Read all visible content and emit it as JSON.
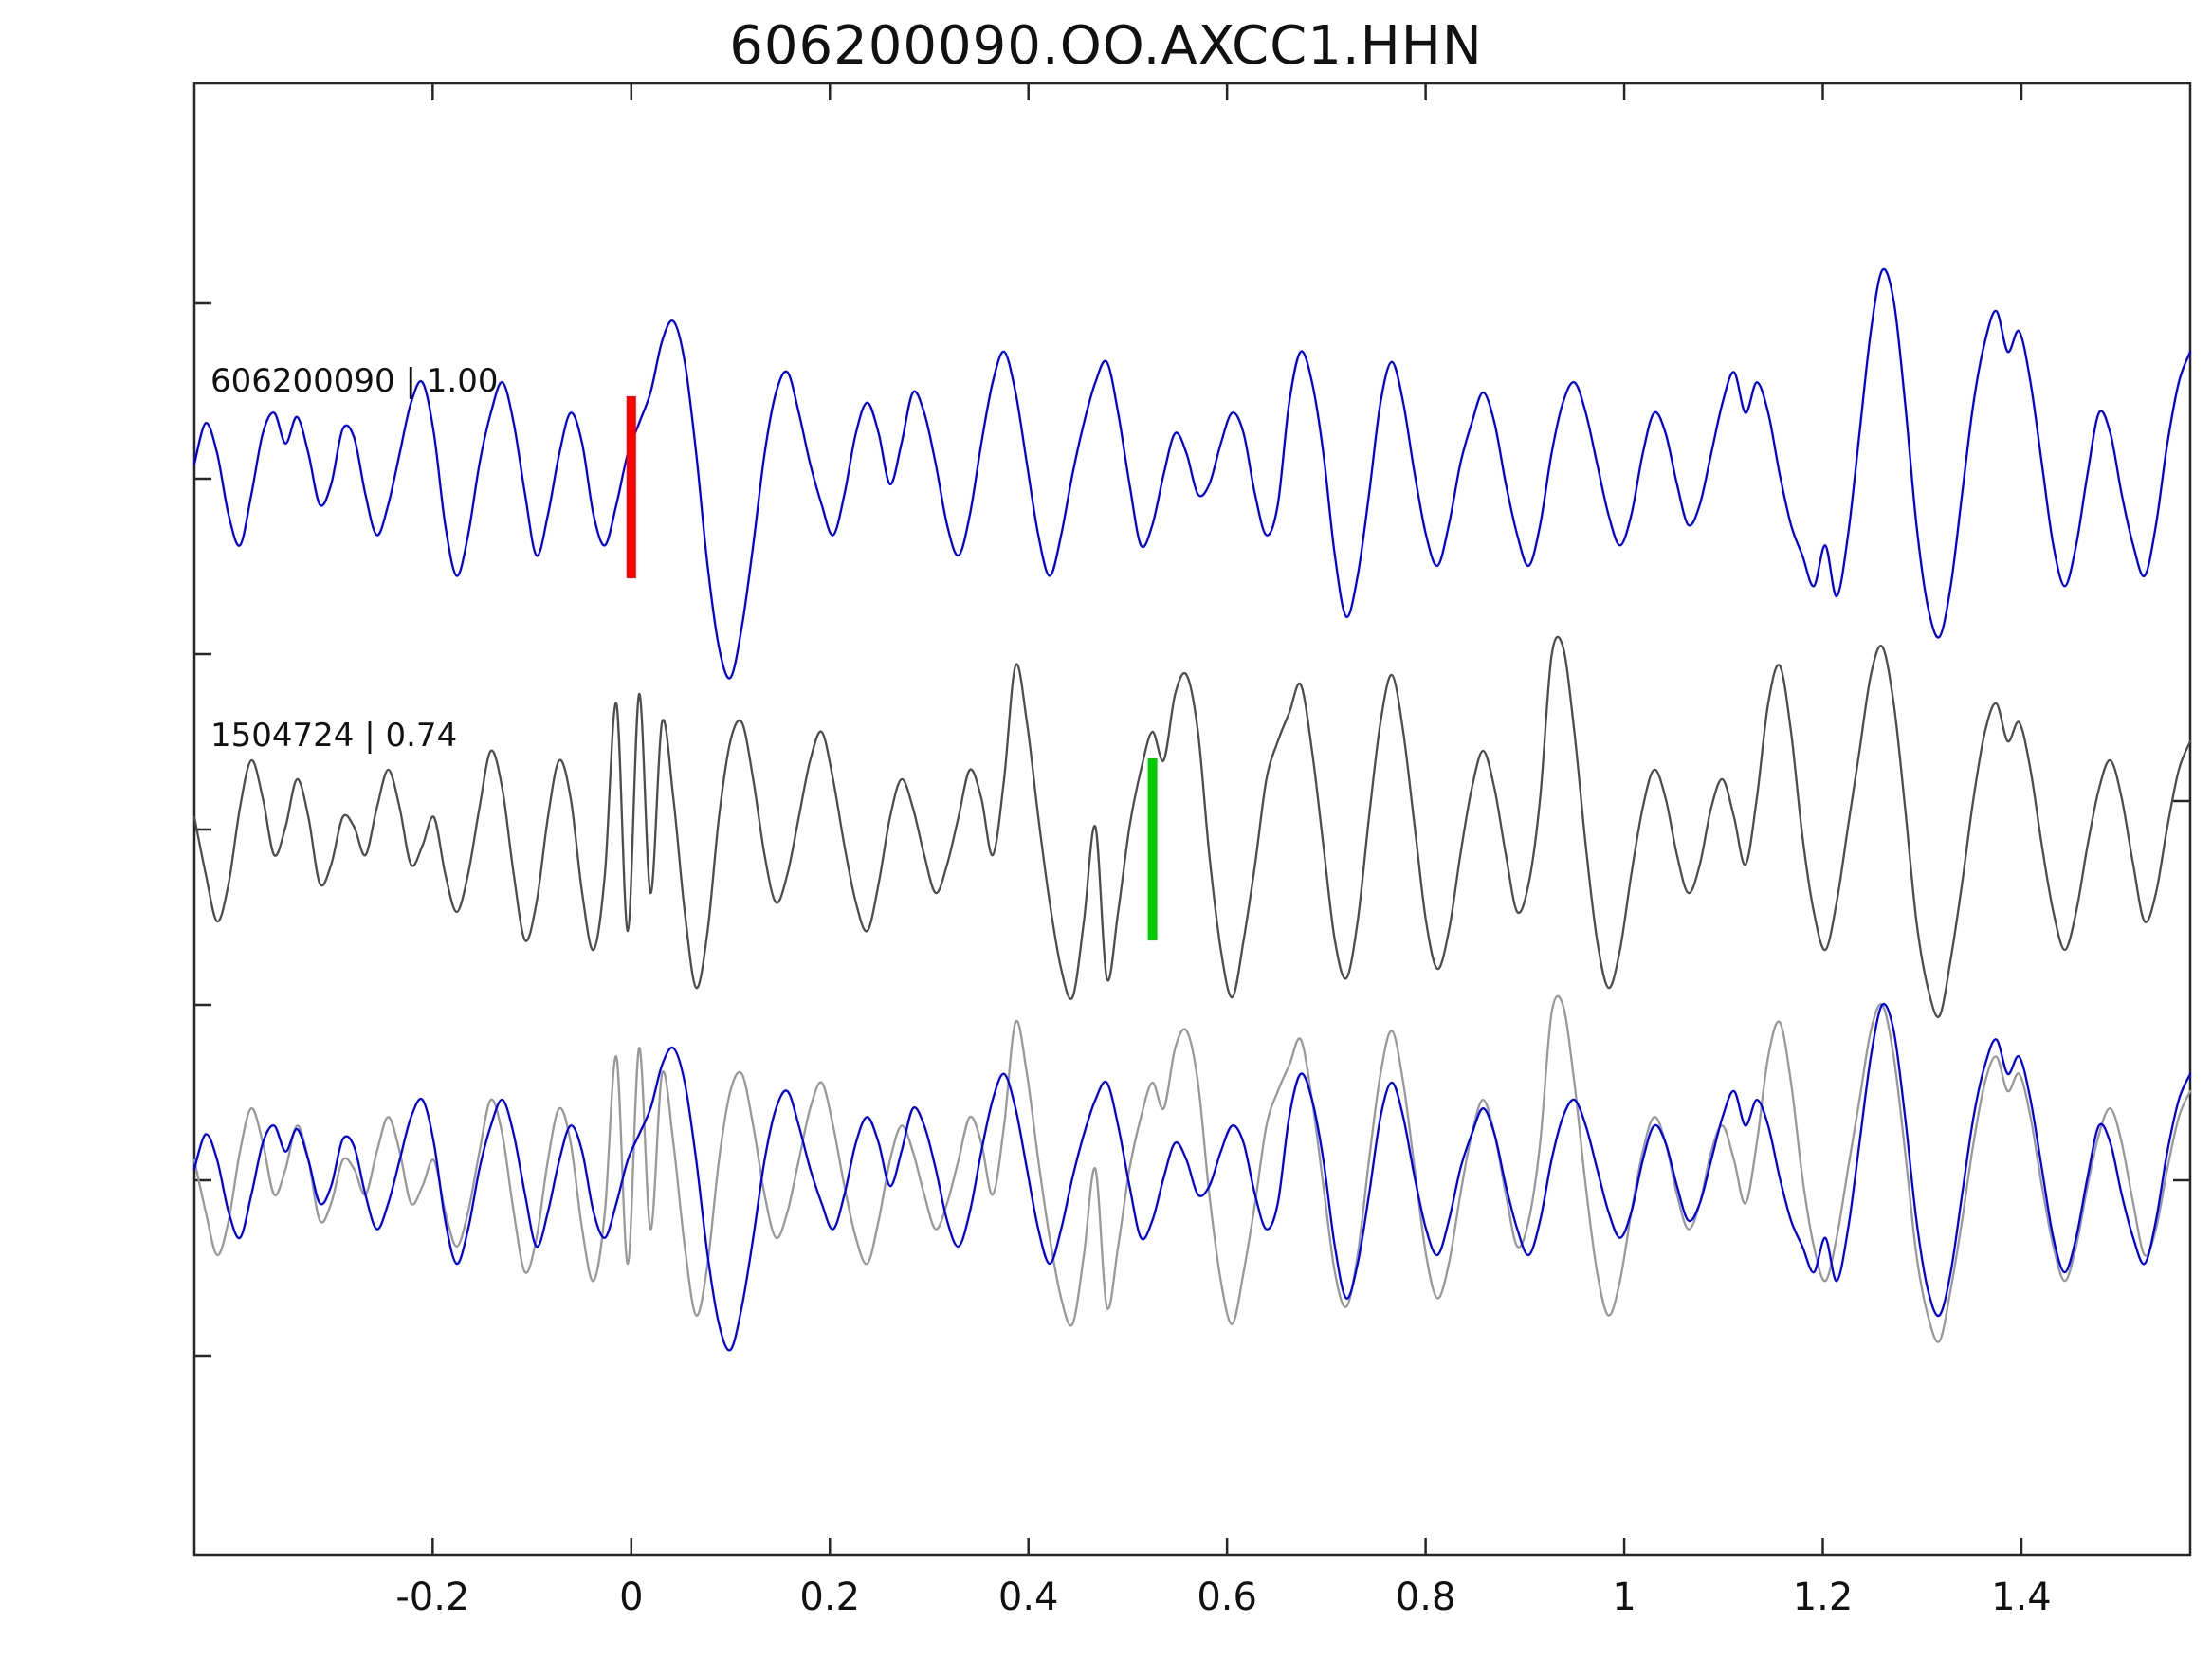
{
  "title": "606200090.OO.AXCC1.HHN",
  "chart_data": {
    "type": "line",
    "title": "606200090.OO.AXCC1.HHN",
    "xlabel": "",
    "ylabel": "",
    "xlim": [
      -0.44,
      1.57
    ],
    "grid": false,
    "legend": "none",
    "x_ticks": [
      -0.2,
      0,
      0.2,
      0.4,
      0.6,
      0.8,
      1,
      1.2,
      1.4
    ],
    "x_tick_labels": [
      "-0.2",
      "0",
      "0.2",
      "0.4",
      "0.6",
      "0.8",
      "1",
      "1.2",
      "1.4"
    ],
    "colors": {
      "axis": "#262626",
      "detection_blue": "#0000ee",
      "template_gray": "#4d4d4d",
      "overlay_gray": "#999999",
      "pick_red": "#ff0000",
      "pick_green": "#00cc00"
    },
    "rows": [
      {
        "name": "detection-trace",
        "label": "606200090 | 1.00",
        "detection_id": "606200090",
        "correlation": "1.00",
        "traces": [
          {
            "series": "detection",
            "color": "#0000ee"
          }
        ],
        "marker": {
          "name": "detection-pick-marker",
          "x": 0,
          "color": "#ff0000"
        }
      },
      {
        "name": "template-trace",
        "label": "1504724 | 0.74",
        "template_id": "1504724",
        "correlation": "0.74",
        "traces": [
          {
            "series": "template",
            "color": "#4d4d4d"
          }
        ],
        "marker": {
          "name": "template-pick-marker",
          "x": 0.525,
          "color": "#00cc00"
        }
      },
      {
        "name": "overlay-trace",
        "label": "",
        "traces": [
          {
            "series": "template",
            "color": "#999999"
          },
          {
            "series": "detection",
            "color": "#0000ee"
          }
        ]
      }
    ],
    "series": {
      "detection": {
        "name": "detection-waveform",
        "values": [
          0.05,
          0.25,
          0.1,
          -0.2,
          -0.35,
          -0.1,
          0.2,
          0.3,
          0.15,
          0.28,
          0.1,
          -0.15,
          -0.05,
          0.22,
          0.18,
          -0.1,
          -0.3,
          -0.15,
          0.1,
          0.35,
          0.45,
          0.2,
          -0.25,
          -0.5,
          -0.3,
          0.05,
          0.3,
          0.45,
          0.25,
          -0.1,
          -0.4,
          -0.2,
          0.1,
          0.3,
          0.15,
          -0.2,
          -0.35,
          -0.15,
          0.1,
          0.25,
          0.4,
          0.65,
          0.75,
          0.55,
          0.1,
          -0.45,
          -0.85,
          -1.0,
          -0.75,
          -0.35,
          0.1,
          0.4,
          0.5,
          0.3,
          0.05,
          -0.15,
          -0.3,
          -0.1,
          0.2,
          0.35,
          0.2,
          -0.05,
          0.15,
          0.4,
          0.3,
          0.05,
          -0.25,
          -0.4,
          -0.2,
          0.15,
          0.45,
          0.6,
          0.4,
          0.05,
          -0.3,
          -0.5,
          -0.3,
          0.0,
          0.25,
          0.45,
          0.55,
          0.3,
          -0.05,
          -0.35,
          -0.25,
          0.0,
          0.2,
          0.1,
          -0.1,
          -0.05,
          0.15,
          0.3,
          0.2,
          -0.1,
          -0.3,
          -0.15,
          0.35,
          0.6,
          0.45,
          0.1,
          -0.4,
          -0.7,
          -0.5,
          -0.1,
          0.35,
          0.55,
          0.35,
          0.0,
          -0.3,
          -0.45,
          -0.25,
          0.05,
          0.25,
          0.4,
          0.25,
          -0.05,
          -0.3,
          -0.45,
          -0.25,
          0.1,
          0.35,
          0.45,
          0.3,
          0.05,
          -0.2,
          -0.35,
          -0.2,
          0.1,
          0.3,
          0.2,
          -0.05,
          -0.25,
          -0.15,
          0.1,
          0.35,
          0.5,
          0.3,
          0.45,
          0.3,
          0.0,
          -0.25,
          -0.4,
          -0.55,
          -0.35,
          -0.6,
          -0.3,
          0.2,
          0.7,
          1.0,
          0.85,
          0.35,
          -0.25,
          -0.65,
          -0.8,
          -0.55,
          -0.1,
          0.35,
          0.65,
          0.8,
          0.6,
          0.7,
          0.45,
          0.05,
          -0.35,
          -0.55,
          -0.35,
          0.0,
          0.3,
          0.2,
          -0.1,
          -0.35,
          -0.5,
          -0.25,
          0.15,
          0.45,
          0.6
        ]
      },
      "template": {
        "name": "template-waveform",
        "values": [
          0.1,
          -0.2,
          -0.45,
          -0.25,
          0.15,
          0.4,
          0.2,
          -0.1,
          0.05,
          0.3,
          0.1,
          -0.25,
          -0.15,
          0.1,
          0.05,
          -0.1,
          0.15,
          0.35,
          0.15,
          -0.15,
          -0.05,
          0.1,
          -0.2,
          -0.4,
          -0.2,
          0.15,
          0.45,
          0.25,
          -0.2,
          -0.55,
          -0.35,
          0.1,
          0.4,
          0.2,
          -0.3,
          -0.6,
          -0.2,
          0.7,
          -0.5,
          0.75,
          -0.3,
          0.6,
          0.2,
          -0.4,
          -0.8,
          -0.5,
          0.1,
          0.5,
          0.6,
          0.3,
          -0.1,
          -0.35,
          -0.2,
          0.1,
          0.4,
          0.55,
          0.3,
          -0.05,
          -0.35,
          -0.5,
          -0.25,
          0.1,
          0.3,
          0.15,
          -0.1,
          -0.3,
          -0.15,
          0.1,
          0.35,
          0.2,
          -0.1,
          0.3,
          0.9,
          0.6,
          0.1,
          -0.35,
          -0.7,
          -0.85,
          -0.45,
          0.05,
          -0.75,
          -0.4,
          0.05,
          0.35,
          0.55,
          0.4,
          0.75,
          0.85,
          0.55,
          -0.1,
          -0.6,
          -0.85,
          -0.55,
          -0.15,
          0.3,
          0.5,
          0.65,
          0.8,
          0.45,
          -0.05,
          -0.55,
          -0.75,
          -0.45,
          0.1,
          0.6,
          0.85,
          0.55,
          0.05,
          -0.45,
          -0.7,
          -0.5,
          -0.1,
          0.25,
          0.45,
          0.25,
          -0.1,
          -0.4,
          -0.25,
          0.2,
          0.95,
          1.0,
          0.55,
          -0.05,
          -0.55,
          -0.8,
          -0.6,
          -0.2,
          0.15,
          0.35,
          0.2,
          -0.1,
          -0.3,
          -0.15,
          0.15,
          0.3,
          0.1,
          -0.15,
          0.2,
          0.7,
          0.9,
          0.55,
          0.0,
          -0.4,
          -0.6,
          -0.35,
          0.05,
          0.45,
          0.85,
          1.0,
          0.7,
          0.15,
          -0.45,
          -0.8,
          -0.95,
          -0.65,
          -0.25,
          0.2,
          0.55,
          0.7,
          0.5,
          0.6,
          0.35,
          -0.05,
          -0.4,
          -0.6,
          -0.4,
          -0.05,
          0.25,
          0.4,
          0.2,
          -0.15,
          -0.45,
          -0.3,
          0.05,
          0.35,
          0.5
        ]
      }
    }
  }
}
